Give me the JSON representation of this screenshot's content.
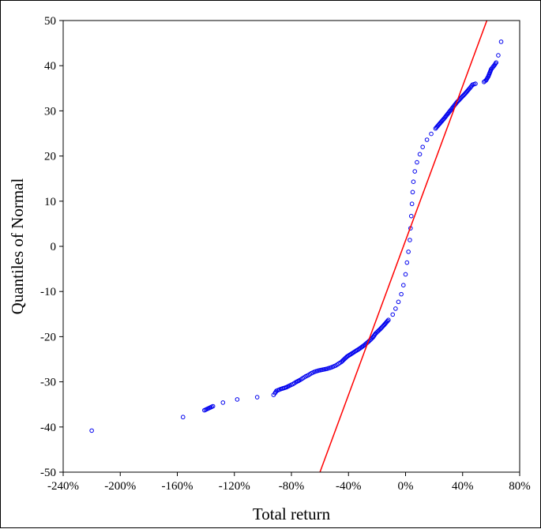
{
  "chart_data": {
    "type": "scatter",
    "title": "",
    "xlabel": "Total return",
    "ylabel": "Quantiles of Normal",
    "xlim": [
      -2.4,
      0.8
    ],
    "ylim": [
      -50,
      50
    ],
    "x_tick_values": [
      -2.4,
      -2.0,
      -1.6,
      -1.2,
      -0.8,
      -0.4,
      0.0,
      0.4,
      0.8
    ],
    "x_tick_labels": [
      "-240%",
      "-200%",
      "-160%",
      "-120%",
      "-80%",
      "-40%",
      "0%",
      "40%",
      "80%"
    ],
    "y_tick_values": [
      -50,
      -40,
      -30,
      -20,
      -10,
      0,
      10,
      20,
      30,
      40,
      50
    ],
    "y_tick_labels": [
      "-50",
      "-40",
      "-30",
      "-20",
      "-10",
      "0",
      "10",
      "20",
      "30",
      "40",
      "50"
    ],
    "grid": false,
    "legend": "none",
    "series": [
      {
        "marker": "open-circle",
        "color": "#0000ee",
        "points": [
          [
            -2.2,
            -40.8
          ],
          [
            -1.56,
            -37.8
          ],
          [
            -1.41,
            -36.3
          ],
          [
            -1.35,
            -35.4
          ],
          [
            -1.28,
            -34.6
          ],
          [
            -1.18,
            -33.9
          ],
          [
            -1.04,
            -33.4
          ],
          [
            -0.925,
            -32.9
          ],
          [
            -0.915,
            -32.5
          ],
          [
            -0.905,
            -32.0
          ],
          [
            -0.875,
            -31.6
          ],
          [
            -0.835,
            -31.2
          ],
          [
            -0.81,
            -30.8
          ],
          [
            -0.79,
            -30.5
          ],
          [
            -0.77,
            -30.1
          ],
          [
            -0.74,
            -29.6
          ],
          [
            -0.72,
            -29.2
          ],
          [
            -0.7,
            -28.8
          ],
          [
            -0.68,
            -28.5
          ],
          [
            -0.66,
            -28.1
          ],
          [
            -0.64,
            -27.8
          ],
          [
            -0.61,
            -27.5
          ],
          [
            -0.58,
            -27.3
          ],
          [
            -0.55,
            -27.1
          ],
          [
            -0.52,
            -26.8
          ],
          [
            -0.49,
            -26.4
          ],
          [
            -0.47,
            -26.0
          ],
          [
            -0.45,
            -25.6
          ],
          [
            -0.43,
            -25.0
          ],
          [
            -0.41,
            -24.4
          ],
          [
            -0.38,
            -23.8
          ],
          [
            -0.35,
            -23.2
          ],
          [
            -0.32,
            -22.6
          ],
          [
            -0.29,
            -21.9
          ],
          [
            -0.26,
            -21.1
          ],
          [
            -0.23,
            -20.2
          ],
          [
            -0.21,
            -19.3
          ],
          [
            -0.18,
            -18.4
          ],
          [
            -0.15,
            -17.4
          ],
          [
            -0.12,
            -16.3
          ],
          [
            -0.09,
            -15.1
          ],
          [
            -0.07,
            -13.8
          ],
          [
            -0.05,
            -12.3
          ],
          [
            -0.03,
            -10.6
          ],
          [
            -0.015,
            -8.6
          ],
          [
            0.0,
            -6.2
          ],
          [
            0.01,
            -3.6
          ],
          [
            0.02,
            -1.2
          ],
          [
            0.03,
            1.4
          ],
          [
            0.035,
            4.0
          ],
          [
            0.04,
            6.7
          ],
          [
            0.045,
            9.4
          ],
          [
            0.05,
            12.0
          ],
          [
            0.055,
            14.3
          ],
          [
            0.065,
            16.6
          ],
          [
            0.08,
            18.6
          ],
          [
            0.1,
            20.4
          ],
          [
            0.12,
            22.0
          ],
          [
            0.15,
            23.6
          ],
          [
            0.18,
            24.9
          ],
          [
            0.21,
            26.1
          ],
          [
            0.24,
            27.2
          ],
          [
            0.27,
            28.3
          ],
          [
            0.3,
            29.5
          ],
          [
            0.33,
            30.7
          ],
          [
            0.36,
            31.9
          ],
          [
            0.39,
            32.9
          ],
          [
            0.42,
            33.9
          ],
          [
            0.45,
            35.0
          ],
          [
            0.47,
            35.8
          ],
          [
            0.49,
            36.0
          ],
          [
            0.55,
            36.4
          ],
          [
            0.565,
            36.8
          ],
          [
            0.58,
            37.6
          ],
          [
            0.59,
            38.4
          ],
          [
            0.6,
            39.2
          ],
          [
            0.625,
            40.2
          ],
          [
            0.635,
            40.7
          ],
          [
            0.65,
            42.3
          ],
          [
            0.67,
            45.3
          ]
        ]
      }
    ],
    "reference_line": {
      "color": "#ff0000",
      "points": [
        [
          -0.6,
          -50
        ],
        [
          0.57,
          50
        ]
      ]
    }
  }
}
